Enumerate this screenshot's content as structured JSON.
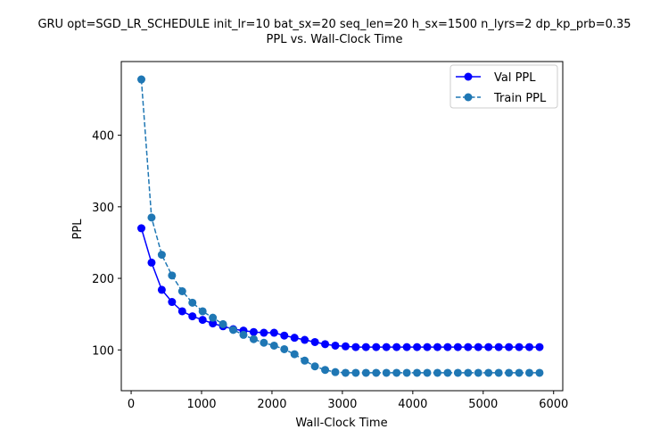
{
  "chart_data": {
    "type": "line",
    "title": "GRU opt=SGD_LR_SCHEDULE init_lr=10 bat_sx=20 seq_len=20 h_sx=1500 n_lyrs=2 dp_kp_prb=0.35",
    "subtitle": "PPL vs. Wall-Clock Time",
    "xlabel": "Wall-Clock Time",
    "ylabel": "PPL",
    "xlim": [
      -140,
      6130
    ],
    "ylim": [
      43,
      503
    ],
    "xticks": [
      0,
      1000,
      2000,
      3000,
      4000,
      5000,
      6000
    ],
    "yticks": [
      100,
      200,
      300,
      400
    ],
    "grid": false,
    "legend_position": "top-right",
    "x": [
      145,
      290,
      435,
      580,
      725,
      870,
      1015,
      1160,
      1305,
      1450,
      1595,
      1740,
      1885,
      2030,
      2175,
      2320,
      2465,
      2610,
      2755,
      2900,
      3045,
      3190,
      3335,
      3480,
      3625,
      3770,
      3915,
      4060,
      4205,
      4350,
      4495,
      4640,
      4785,
      4930,
      5075,
      5220,
      5365,
      5510,
      5655,
      5800
    ],
    "series": [
      {
        "name": "Val PPL",
        "color": "#0000ff",
        "linestyle": "solid",
        "marker": "circle",
        "values": [
          270,
          222,
          184,
          167,
          154,
          147,
          142,
          137,
          133,
          129,
          127,
          125,
          124,
          124,
          120,
          117,
          114,
          111,
          108,
          106,
          105,
          104,
          104,
          104,
          104,
          104,
          104,
          104,
          104,
          104,
          104,
          104,
          104,
          104,
          104,
          104,
          104,
          104,
          104,
          104
        ]
      },
      {
        "name": "Train PPL",
        "color": "#1f77b4",
        "linestyle": "dashed",
        "marker": "circle",
        "values": [
          478,
          285,
          233,
          204,
          182,
          166,
          154,
          145,
          136,
          128,
          121,
          115,
          110,
          106,
          101,
          94,
          85,
          77,
          72,
          69,
          68,
          68,
          68,
          68,
          68,
          68,
          68,
          68,
          68,
          68,
          68,
          68,
          68,
          68,
          68,
          68,
          68,
          68,
          68,
          68
        ]
      }
    ]
  }
}
